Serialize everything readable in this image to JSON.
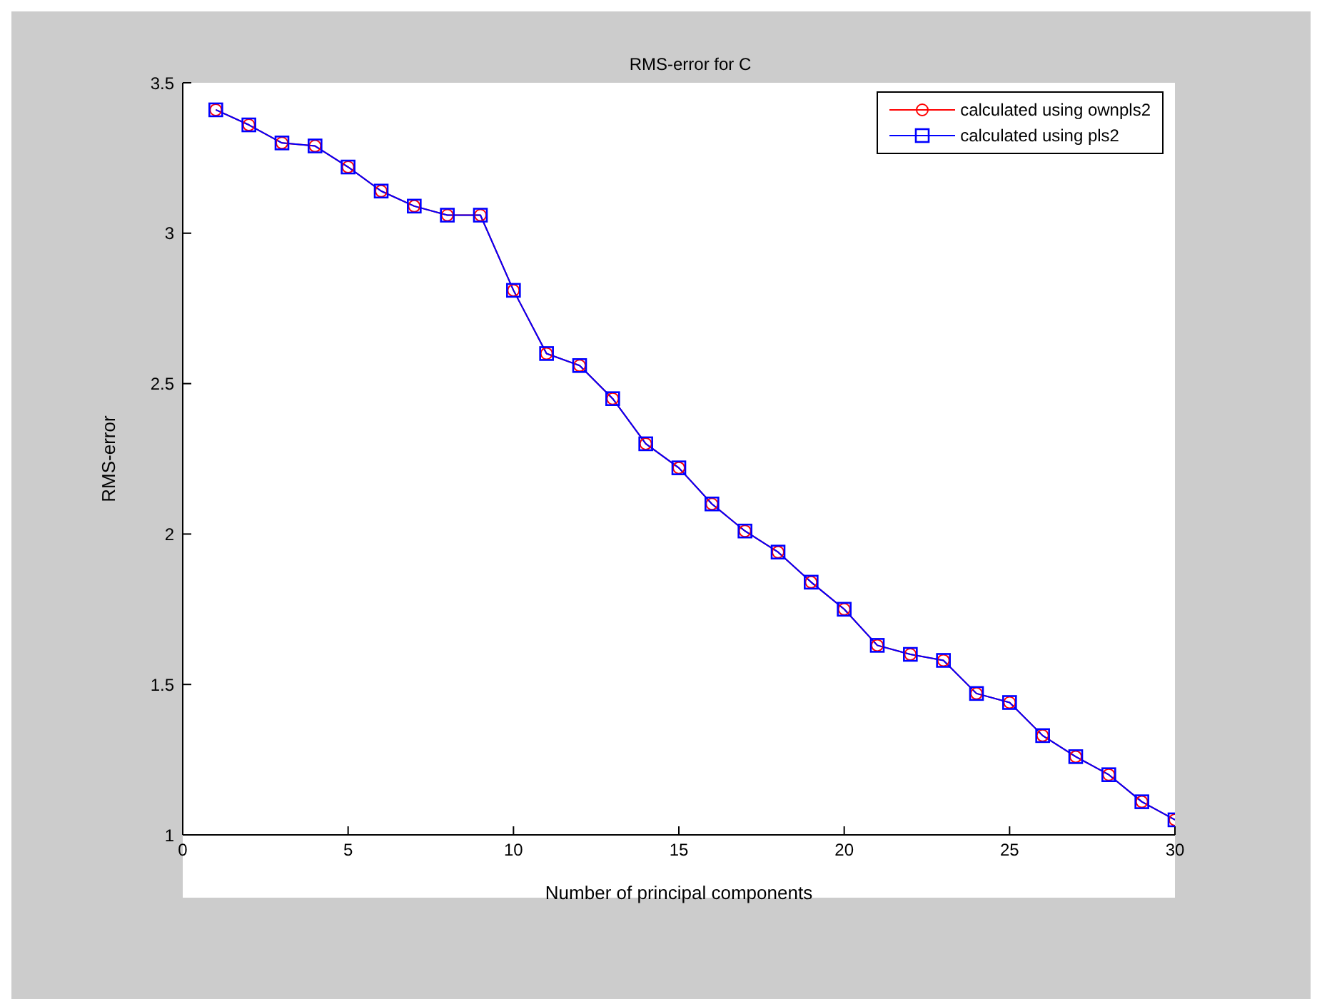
{
  "chart_data": {
    "type": "line",
    "title": "RMS-error for C",
    "xlabel": "Number of principal components",
    "ylabel": "RMS-error",
    "x": [
      1,
      2,
      3,
      4,
      5,
      6,
      7,
      8,
      9,
      10,
      11,
      12,
      13,
      14,
      15,
      16,
      17,
      18,
      19,
      20,
      21,
      22,
      23,
      24,
      25,
      26,
      27,
      28,
      29,
      30
    ],
    "series": [
      {
        "name": "calculated using ownpls2",
        "color": "#ff0000",
        "marker": "circle",
        "values": [
          3.41,
          3.36,
          3.3,
          3.29,
          3.22,
          3.14,
          3.09,
          3.06,
          3.06,
          2.81,
          2.6,
          2.56,
          2.45,
          2.3,
          2.22,
          2.1,
          2.01,
          1.94,
          1.84,
          1.75,
          1.63,
          1.6,
          1.58,
          1.47,
          1.44,
          1.33,
          1.26,
          1.2,
          1.11,
          1.05
        ]
      },
      {
        "name": "calculated using pls2",
        "color": "#0000ff",
        "marker": "square",
        "values": [
          3.41,
          3.36,
          3.3,
          3.29,
          3.22,
          3.14,
          3.09,
          3.06,
          3.06,
          2.81,
          2.6,
          2.56,
          2.45,
          2.3,
          2.22,
          2.1,
          2.01,
          1.94,
          1.84,
          1.75,
          1.63,
          1.6,
          1.58,
          1.47,
          1.44,
          1.33,
          1.26,
          1.2,
          1.11,
          1.05
        ]
      }
    ],
    "xlim": [
      0,
      30
    ],
    "xticks": [
      0,
      5,
      10,
      15,
      20,
      25,
      30
    ],
    "ylim": [
      1,
      3.5
    ],
    "yticks": [
      1,
      1.5,
      2,
      2.5,
      3,
      3.5
    ],
    "grid": false,
    "legend": "top right",
    "line_style": "solid"
  }
}
